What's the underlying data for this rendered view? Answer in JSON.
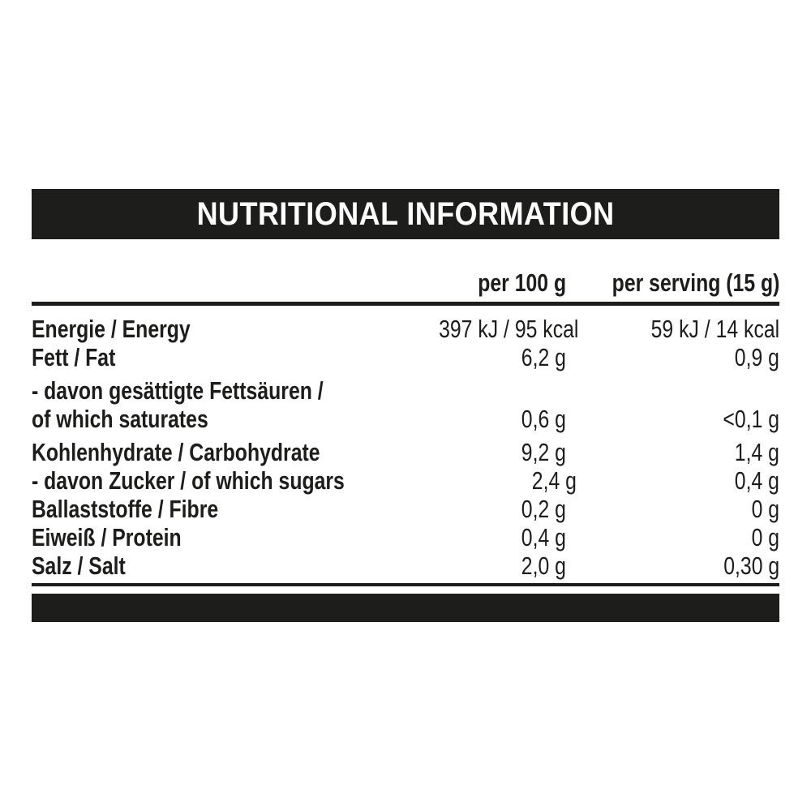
{
  "header": {
    "title": "NUTRITIONAL INFORMATION"
  },
  "table": {
    "columns": {
      "per100": "per 100 g",
      "perServing": "per serving (15 g)"
    },
    "rows": [
      {
        "label_lines": [
          "Energie / Energy"
        ],
        "per100": "397 kJ / 95 kcal",
        "perServing": "59 kJ / 14 kcal"
      },
      {
        "label_lines": [
          "Fett / Fat"
        ],
        "per100": "6,2 g",
        "perServing": "0,9 g"
      },
      {
        "label_lines": [
          "- davon gesättigte Fettsäuren /",
          "of which saturates"
        ],
        "per100": "0,6 g",
        "perServing": "<0,1 g"
      },
      {
        "label_lines": [
          "Kohlenhydrate / Carbohydrate"
        ],
        "per100": "9,2 g",
        "perServing": "1,4 g"
      },
      {
        "label_lines": [
          "- davon Zucker / of which sugars"
        ],
        "per100": "2,4 g",
        "perServing": "0,4 g"
      },
      {
        "label_lines": [
          "Ballaststoffe / Fibre"
        ],
        "per100": "0,2 g",
        "perServing": "0 g"
      },
      {
        "label_lines": [
          "Eiweiß / Protein"
        ],
        "per100": "0,4 g",
        "perServing": "0 g"
      },
      {
        "label_lines": [
          "Salz / Salt"
        ],
        "per100": "2,0 g",
        "perServing": "0,30 g"
      }
    ]
  },
  "colors": {
    "ink": "#1d1d1b",
    "background": "#ffffff"
  }
}
